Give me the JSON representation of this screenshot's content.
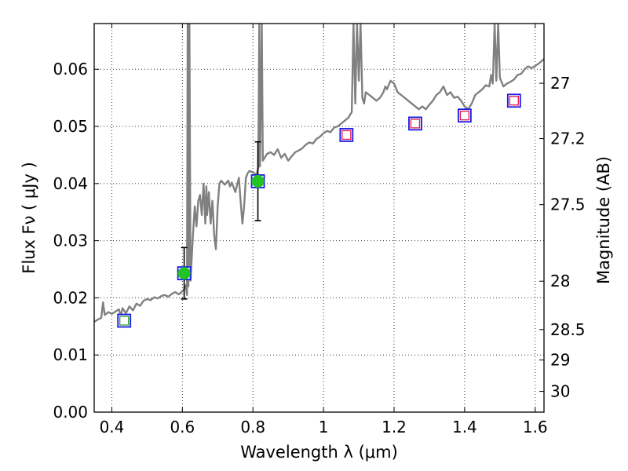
{
  "chart_data": {
    "type": "scatter",
    "xlabel": "Wavelength  λ (μm)",
    "ylabel": "Flux  Fν  ( μJy )",
    "y2label": "Magnitude (AB)",
    "xlim": [
      0.35,
      1.625
    ],
    "ylim": [
      0.0,
      0.068
    ],
    "grid": true,
    "x_ticks": [
      {
        "value": 0.4,
        "label": "0.4"
      },
      {
        "value": 0.6,
        "label": "0.6"
      },
      {
        "value": 0.8,
        "label": "0.8"
      },
      {
        "value": 1.0,
        "label": "1"
      },
      {
        "value": 1.2,
        "label": "1.2"
      },
      {
        "value": 1.4,
        "label": "1.4"
      },
      {
        "value": 1.6,
        "label": "1.6"
      }
    ],
    "y_ticks": [
      {
        "value": 0.0,
        "label": "0.00"
      },
      {
        "value": 0.01,
        "label": "0.01"
      },
      {
        "value": 0.02,
        "label": "0.02"
      },
      {
        "value": 0.03,
        "label": "0.03"
      },
      {
        "value": 0.04,
        "label": "0.04"
      },
      {
        "value": 0.05,
        "label": "0.05"
      },
      {
        "value": 0.06,
        "label": "0.06"
      }
    ],
    "y2_ticks": [
      {
        "mag": 27.0,
        "label": "27"
      },
      {
        "mag": 27.2,
        "label": "27.2"
      },
      {
        "mag": 27.5,
        "label": "27.5"
      },
      {
        "mag": 28.0,
        "label": "28"
      },
      {
        "mag": 28.5,
        "label": "28.5"
      },
      {
        "mag": 29.0,
        "label": "29"
      },
      {
        "mag": 30.0,
        "label": "30"
      }
    ],
    "spectrum": {
      "color": "#808080",
      "points": [
        [
          0.35,
          0.0158
        ],
        [
          0.36,
          0.0162
        ],
        [
          0.37,
          0.0165
        ],
        [
          0.375,
          0.0192
        ],
        [
          0.38,
          0.017
        ],
        [
          0.39,
          0.0175
        ],
        [
          0.4,
          0.0172
        ],
        [
          0.41,
          0.0176
        ],
        [
          0.42,
          0.018
        ],
        [
          0.425,
          0.0168
        ],
        [
          0.43,
          0.0182
        ],
        [
          0.44,
          0.0173
        ],
        [
          0.45,
          0.0185
        ],
        [
          0.46,
          0.0178
        ],
        [
          0.47,
          0.019
        ],
        [
          0.48,
          0.0186
        ],
        [
          0.49,
          0.0195
        ],
        [
          0.5,
          0.0198
        ],
        [
          0.51,
          0.0196
        ],
        [
          0.52,
          0.0201
        ],
        [
          0.53,
          0.0199
        ],
        [
          0.54,
          0.0203
        ],
        [
          0.55,
          0.0205
        ],
        [
          0.56,
          0.0202
        ],
        [
          0.57,
          0.0207
        ],
        [
          0.58,
          0.021
        ],
        [
          0.59,
          0.0206
        ],
        [
          0.6,
          0.0212
        ],
        [
          0.605,
          0.0215
        ],
        [
          0.61,
          0.0222
        ],
        [
          0.613,
          0.0205
        ],
        [
          0.615,
          0.068
        ],
        [
          0.617,
          0.022
        ],
        [
          0.62,
          0.068
        ],
        [
          0.623,
          0.023
        ],
        [
          0.63,
          0.031
        ],
        [
          0.635,
          0.036
        ],
        [
          0.64,
          0.0325
        ],
        [
          0.645,
          0.037
        ],
        [
          0.65,
          0.038
        ],
        [
          0.655,
          0.0345
        ],
        [
          0.66,
          0.04
        ],
        [
          0.665,
          0.033
        ],
        [
          0.668,
          0.0395
        ],
        [
          0.67,
          0.0345
        ],
        [
          0.675,
          0.0385
        ],
        [
          0.68,
          0.033
        ],
        [
          0.685,
          0.037
        ],
        [
          0.69,
          0.031
        ],
        [
          0.695,
          0.0285
        ],
        [
          0.7,
          0.036
        ],
        [
          0.705,
          0.04
        ],
        [
          0.71,
          0.0405
        ],
        [
          0.72,
          0.0398
        ],
        [
          0.73,
          0.0405
        ],
        [
          0.735,
          0.0395
        ],
        [
          0.74,
          0.0402
        ],
        [
          0.75,
          0.0385
        ],
        [
          0.76,
          0.041
        ],
        [
          0.765,
          0.037
        ],
        [
          0.77,
          0.033
        ],
        [
          0.775,
          0.036
        ],
        [
          0.78,
          0.041
        ],
        [
          0.785,
          0.0418
        ],
        [
          0.79,
          0.0422
        ],
        [
          0.8,
          0.042
        ],
        [
          0.81,
          0.0415
        ],
        [
          0.815,
          0.0428
        ],
        [
          0.818,
          0.068
        ],
        [
          0.82,
          0.043
        ],
        [
          0.825,
          0.068
        ],
        [
          0.828,
          0.044
        ],
        [
          0.84,
          0.0452
        ],
        [
          0.85,
          0.0455
        ],
        [
          0.86,
          0.045
        ],
        [
          0.87,
          0.046
        ],
        [
          0.88,
          0.0445
        ],
        [
          0.89,
          0.0452
        ],
        [
          0.9,
          0.044
        ],
        [
          0.91,
          0.0448
        ],
        [
          0.92,
          0.0455
        ],
        [
          0.93,
          0.0458
        ],
        [
          0.94,
          0.0462
        ],
        [
          0.95,
          0.0468
        ],
        [
          0.96,
          0.0472
        ],
        [
          0.97,
          0.047
        ],
        [
          0.98,
          0.0478
        ],
        [
          0.99,
          0.0482
        ],
        [
          1.0,
          0.0488
        ],
        [
          1.01,
          0.0492
        ],
        [
          1.02,
          0.049
        ],
        [
          1.03,
          0.0498
        ],
        [
          1.04,
          0.05
        ],
        [
          1.05,
          0.0505
        ],
        [
          1.06,
          0.051
        ],
        [
          1.07,
          0.0515
        ],
        [
          1.08,
          0.0525
        ],
        [
          1.085,
          0.068
        ],
        [
          1.09,
          0.054
        ],
        [
          1.095,
          0.068
        ],
        [
          1.1,
          0.058
        ],
        [
          1.105,
          0.068
        ],
        [
          1.11,
          0.055
        ],
        [
          1.115,
          0.054
        ],
        [
          1.12,
          0.056
        ],
        [
          1.13,
          0.0555
        ],
        [
          1.14,
          0.055
        ],
        [
          1.15,
          0.0545
        ],
        [
          1.16,
          0.055
        ],
        [
          1.17,
          0.056
        ],
        [
          1.175,
          0.057
        ],
        [
          1.18,
          0.0565
        ],
        [
          1.19,
          0.058
        ],
        [
          1.2,
          0.0575
        ],
        [
          1.21,
          0.056
        ],
        [
          1.22,
          0.0555
        ],
        [
          1.23,
          0.055
        ],
        [
          1.24,
          0.0545
        ],
        [
          1.25,
          0.054
        ],
        [
          1.26,
          0.0535
        ],
        [
          1.27,
          0.053
        ],
        [
          1.28,
          0.0535
        ],
        [
          1.29,
          0.053
        ],
        [
          1.3,
          0.0538
        ],
        [
          1.31,
          0.0545
        ],
        [
          1.32,
          0.0555
        ],
        [
          1.33,
          0.056
        ],
        [
          1.34,
          0.057
        ],
        [
          1.35,
          0.0555
        ],
        [
          1.36,
          0.056
        ],
        [
          1.37,
          0.055
        ],
        [
          1.38,
          0.0552
        ],
        [
          1.39,
          0.0545
        ],
        [
          1.4,
          0.0535
        ],
        [
          1.41,
          0.053
        ],
        [
          1.42,
          0.054
        ],
        [
          1.43,
          0.0555
        ],
        [
          1.44,
          0.056
        ],
        [
          1.45,
          0.0565
        ],
        [
          1.46,
          0.0572
        ],
        [
          1.47,
          0.057
        ],
        [
          1.475,
          0.059
        ],
        [
          1.48,
          0.0575
        ],
        [
          1.485,
          0.068
        ],
        [
          1.49,
          0.058
        ],
        [
          1.495,
          0.068
        ],
        [
          1.5,
          0.0585
        ],
        [
          1.51,
          0.057
        ],
        [
          1.52,
          0.0575
        ],
        [
          1.53,
          0.0578
        ],
        [
          1.54,
          0.0582
        ],
        [
          1.55,
          0.059
        ],
        [
          1.56,
          0.0592
        ],
        [
          1.57,
          0.06
        ],
        [
          1.58,
          0.0605
        ],
        [
          1.59,
          0.0602
        ],
        [
          1.6,
          0.0606
        ],
        [
          1.61,
          0.061
        ],
        [
          1.625,
          0.0618
        ]
      ]
    },
    "model_points": [
      {
        "x": 0.435,
        "y": 0.016,
        "fill": "#ffffff",
        "stroke": "#2e9e2e",
        "border": "#1a1ae6"
      },
      {
        "x": 0.605,
        "y": 0.0243,
        "fill": "#ffffff",
        "stroke": "#ffffff",
        "border": "#1a1ae6"
      },
      {
        "x": 0.814,
        "y": 0.0404,
        "fill": "#ffffff",
        "stroke": "#ffffff",
        "border": "#1a1ae6"
      },
      {
        "x": 1.065,
        "y": 0.0485,
        "fill": "#ffffff",
        "stroke": "#e6194b",
        "border": "#1a1ae6"
      },
      {
        "x": 1.26,
        "y": 0.0505,
        "fill": "#ffffff",
        "stroke": "#e6194b",
        "border": "#1a1ae6"
      },
      {
        "x": 1.4,
        "y": 0.0519,
        "fill": "#ffffff",
        "stroke": "#e6194b",
        "border": "#1a1ae6"
      },
      {
        "x": 1.54,
        "y": 0.0545,
        "fill": "#ffffff",
        "stroke": "#e6194b",
        "border": "#1a1ae6"
      }
    ],
    "observed_points": [
      {
        "x": 0.605,
        "y": 0.0243,
        "yerr_low": 0.0045,
        "yerr_high": 0.0045,
        "color": "#22c322"
      },
      {
        "x": 0.814,
        "y": 0.0404,
        "yerr_low": 0.0069,
        "yerr_high": 0.0069,
        "color": "#22c322"
      }
    ]
  }
}
